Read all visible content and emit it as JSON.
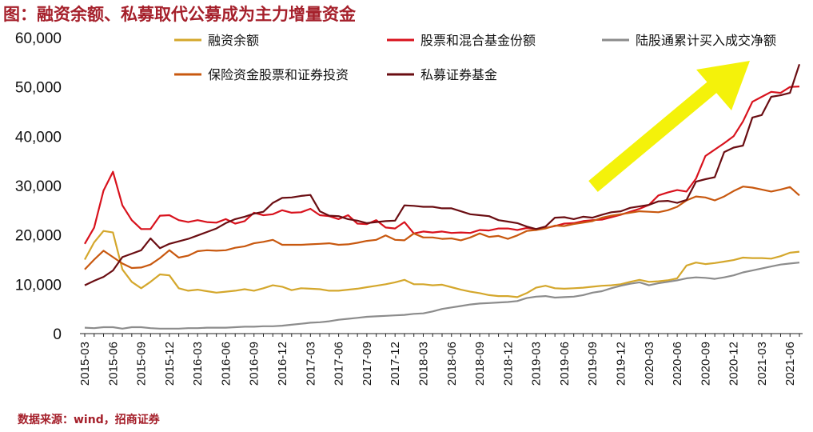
{
  "title": "图：融资余额、私募取代公募成为主力增量资金",
  "source": "数据来源：wind，招商证券",
  "colors": {
    "title": "#a5202b",
    "arrow": "#f4f20a"
  },
  "chart_data": {
    "type": "line",
    "ylim": [
      0,
      60000
    ],
    "yticks": [
      "0",
      "10,000",
      "20,000",
      "30,000",
      "40,000",
      "50,000",
      "60,000"
    ],
    "ytick_values": [
      0,
      10000,
      20000,
      30000,
      40000,
      50000,
      60000
    ],
    "xticks": [
      "2015-03",
      "2015-06",
      "2015-09",
      "2015-12",
      "2016-03",
      "2016-06",
      "2016-09",
      "2016-12",
      "2017-03",
      "2017-06",
      "2017-09",
      "2017-12",
      "2018-03",
      "2018-06",
      "2018-09",
      "2018-12",
      "2019-03",
      "2019-06",
      "2019-09",
      "2019-12",
      "2020-03",
      "2020-06",
      "2020-09",
      "2020-12",
      "2021-03",
      "2021-06"
    ],
    "x": [
      "2015-03",
      "2015-04",
      "2015-05",
      "2015-06",
      "2015-07",
      "2015-08",
      "2015-09",
      "2015-10",
      "2015-11",
      "2015-12",
      "2016-01",
      "2016-02",
      "2016-03",
      "2016-04",
      "2016-05",
      "2016-06",
      "2016-07",
      "2016-08",
      "2016-09",
      "2016-10",
      "2016-11",
      "2016-12",
      "2017-01",
      "2017-02",
      "2017-03",
      "2017-04",
      "2017-05",
      "2017-06",
      "2017-07",
      "2017-08",
      "2017-09",
      "2017-10",
      "2017-11",
      "2017-12",
      "2018-01",
      "2018-02",
      "2018-03",
      "2018-04",
      "2018-05",
      "2018-06",
      "2018-07",
      "2018-08",
      "2018-09",
      "2018-10",
      "2018-11",
      "2018-12",
      "2019-01",
      "2019-02",
      "2019-03",
      "2019-04",
      "2019-05",
      "2019-06",
      "2019-07",
      "2019-08",
      "2019-09",
      "2019-10",
      "2019-11",
      "2019-12",
      "2020-01",
      "2020-02",
      "2020-03",
      "2020-04",
      "2020-05",
      "2020-06",
      "2020-07",
      "2020-08",
      "2020-09",
      "2020-10",
      "2020-11",
      "2020-12",
      "2021-01",
      "2021-02",
      "2021-03",
      "2021-04",
      "2021-05",
      "2021-06",
      "2021-07"
    ],
    "legend_position": "top",
    "series": [
      {
        "name": "融资余额",
        "color": "#d4a72c",
        "values": [
          15000,
          18500,
          20800,
          20500,
          13000,
          10500,
          9200,
          10500,
          12000,
          11800,
          9200,
          8700,
          8900,
          8600,
          8300,
          8500,
          8700,
          9000,
          8700,
          9200,
          9800,
          9500,
          8800,
          9200,
          9100,
          9000,
          8700,
          8700,
          8900,
          9100,
          9400,
          9700,
          10000,
          10400,
          10900,
          10000,
          10000,
          9800,
          9900,
          9400,
          8900,
          8500,
          8200,
          7800,
          7600,
          7600,
          7400,
          8200,
          9300,
          9700,
          9200,
          9100,
          9200,
          9300,
          9500,
          9700,
          9800,
          10000,
          10500,
          10900,
          10500,
          10600,
          10800,
          11200,
          13800,
          14400,
          14100,
          14300,
          14600,
          14900,
          15400,
          15300,
          15300,
          15200,
          15700,
          16400,
          16600
        ]
      },
      {
        "name": "股票和混合基金份额",
        "color": "#d8121d",
        "values": [
          18200,
          21500,
          29000,
          32800,
          26000,
          23000,
          21200,
          21200,
          23900,
          24000,
          23000,
          22600,
          23000,
          22600,
          22500,
          23200,
          22300,
          22800,
          24500,
          24000,
          24200,
          25000,
          24500,
          24600,
          25300,
          24000,
          23800,
          23200,
          24000,
          22300,
          22200,
          23000,
          21500,
          21300,
          22600,
          20300,
          20700,
          20500,
          20700,
          20400,
          20500,
          20400,
          21000,
          20900,
          21300,
          21300,
          21000,
          21400,
          21200,
          21400,
          21800,
          22300,
          22400,
          22800,
          23000,
          23100,
          23600,
          24100,
          24700,
          25300,
          26100,
          28000,
          28600,
          29100,
          28800,
          31400,
          36000,
          37300,
          38600,
          40000,
          43000,
          47000,
          48000,
          49000,
          48800,
          50000,
          50100
        ]
      },
      {
        "name": "陆股通累计买入成交净额",
        "color": "#8c8c8c",
        "values": [
          1200,
          1100,
          1300,
          1300,
          1000,
          1300,
          1300,
          1100,
          1000,
          1000,
          1000,
          1100,
          1100,
          1200,
          1200,
          1200,
          1300,
          1400,
          1400,
          1500,
          1500,
          1600,
          1800,
          2000,
          2200,
          2300,
          2500,
          2800,
          3000,
          3200,
          3400,
          3500,
          3600,
          3700,
          3800,
          4000,
          4100,
          4500,
          5000,
          5300,
          5600,
          5900,
          6100,
          6200,
          6300,
          6400,
          6600,
          7200,
          7500,
          7600,
          7300,
          7400,
          7500,
          7800,
          8300,
          8600,
          9200,
          9700,
          10100,
          10400,
          9800,
          10200,
          10500,
          10800,
          11200,
          11400,
          11300,
          11100,
          11400,
          11800,
          12400,
          12800,
          13200,
          13600,
          14000,
          14200,
          14400
        ]
      },
      {
        "name": "保险资金股票和证券投资",
        "color": "#c8580f",
        "values": [
          13000,
          15000,
          16800,
          15500,
          14200,
          13300,
          13400,
          14000,
          15300,
          16900,
          15400,
          15800,
          16700,
          16900,
          16800,
          16900,
          17400,
          17700,
          18300,
          18600,
          19000,
          18000,
          18000,
          18000,
          18100,
          18200,
          18300,
          18000,
          18100,
          18400,
          18800,
          19000,
          19900,
          19000,
          18900,
          20300,
          19500,
          19500,
          19200,
          19300,
          18900,
          19500,
          20300,
          19600,
          19800,
          19200,
          19900,
          20800,
          21000,
          21300,
          21900,
          21800,
          22200,
          22500,
          22800,
          23500,
          23900,
          24200,
          24500,
          24800,
          24700,
          24600,
          25000,
          25700,
          27000,
          27800,
          27600,
          27000,
          27800,
          28900,
          29800,
          29600,
          29200,
          28800,
          29200,
          29700,
          28000
        ]
      },
      {
        "name": "私募证券基金",
        "color": "#6a0d12",
        "values": [
          9800,
          10700,
          11500,
          12800,
          15500,
          16200,
          16900,
          19300,
          17300,
          18200,
          18700,
          19200,
          19900,
          20600,
          21300,
          22400,
          23200,
          23700,
          24300,
          24700,
          26500,
          27500,
          27600,
          27900,
          28100,
          24800,
          23900,
          23800,
          23200,
          22900,
          22400,
          22600,
          22800,
          22900,
          26000,
          25900,
          25700,
          25700,
          25400,
          25400,
          24800,
          24200,
          24000,
          23800,
          23000,
          22700,
          22400,
          21700,
          21200,
          21700,
          23500,
          23600,
          23200,
          23700,
          23500,
          24100,
          24600,
          24800,
          25500,
          25800,
          26100,
          26800,
          26900,
          26500,
          27100,
          30800,
          31300,
          31700,
          36800,
          37700,
          38100,
          43800,
          44300,
          48000,
          48300,
          48800,
          54600
        ]
      }
    ]
  }
}
